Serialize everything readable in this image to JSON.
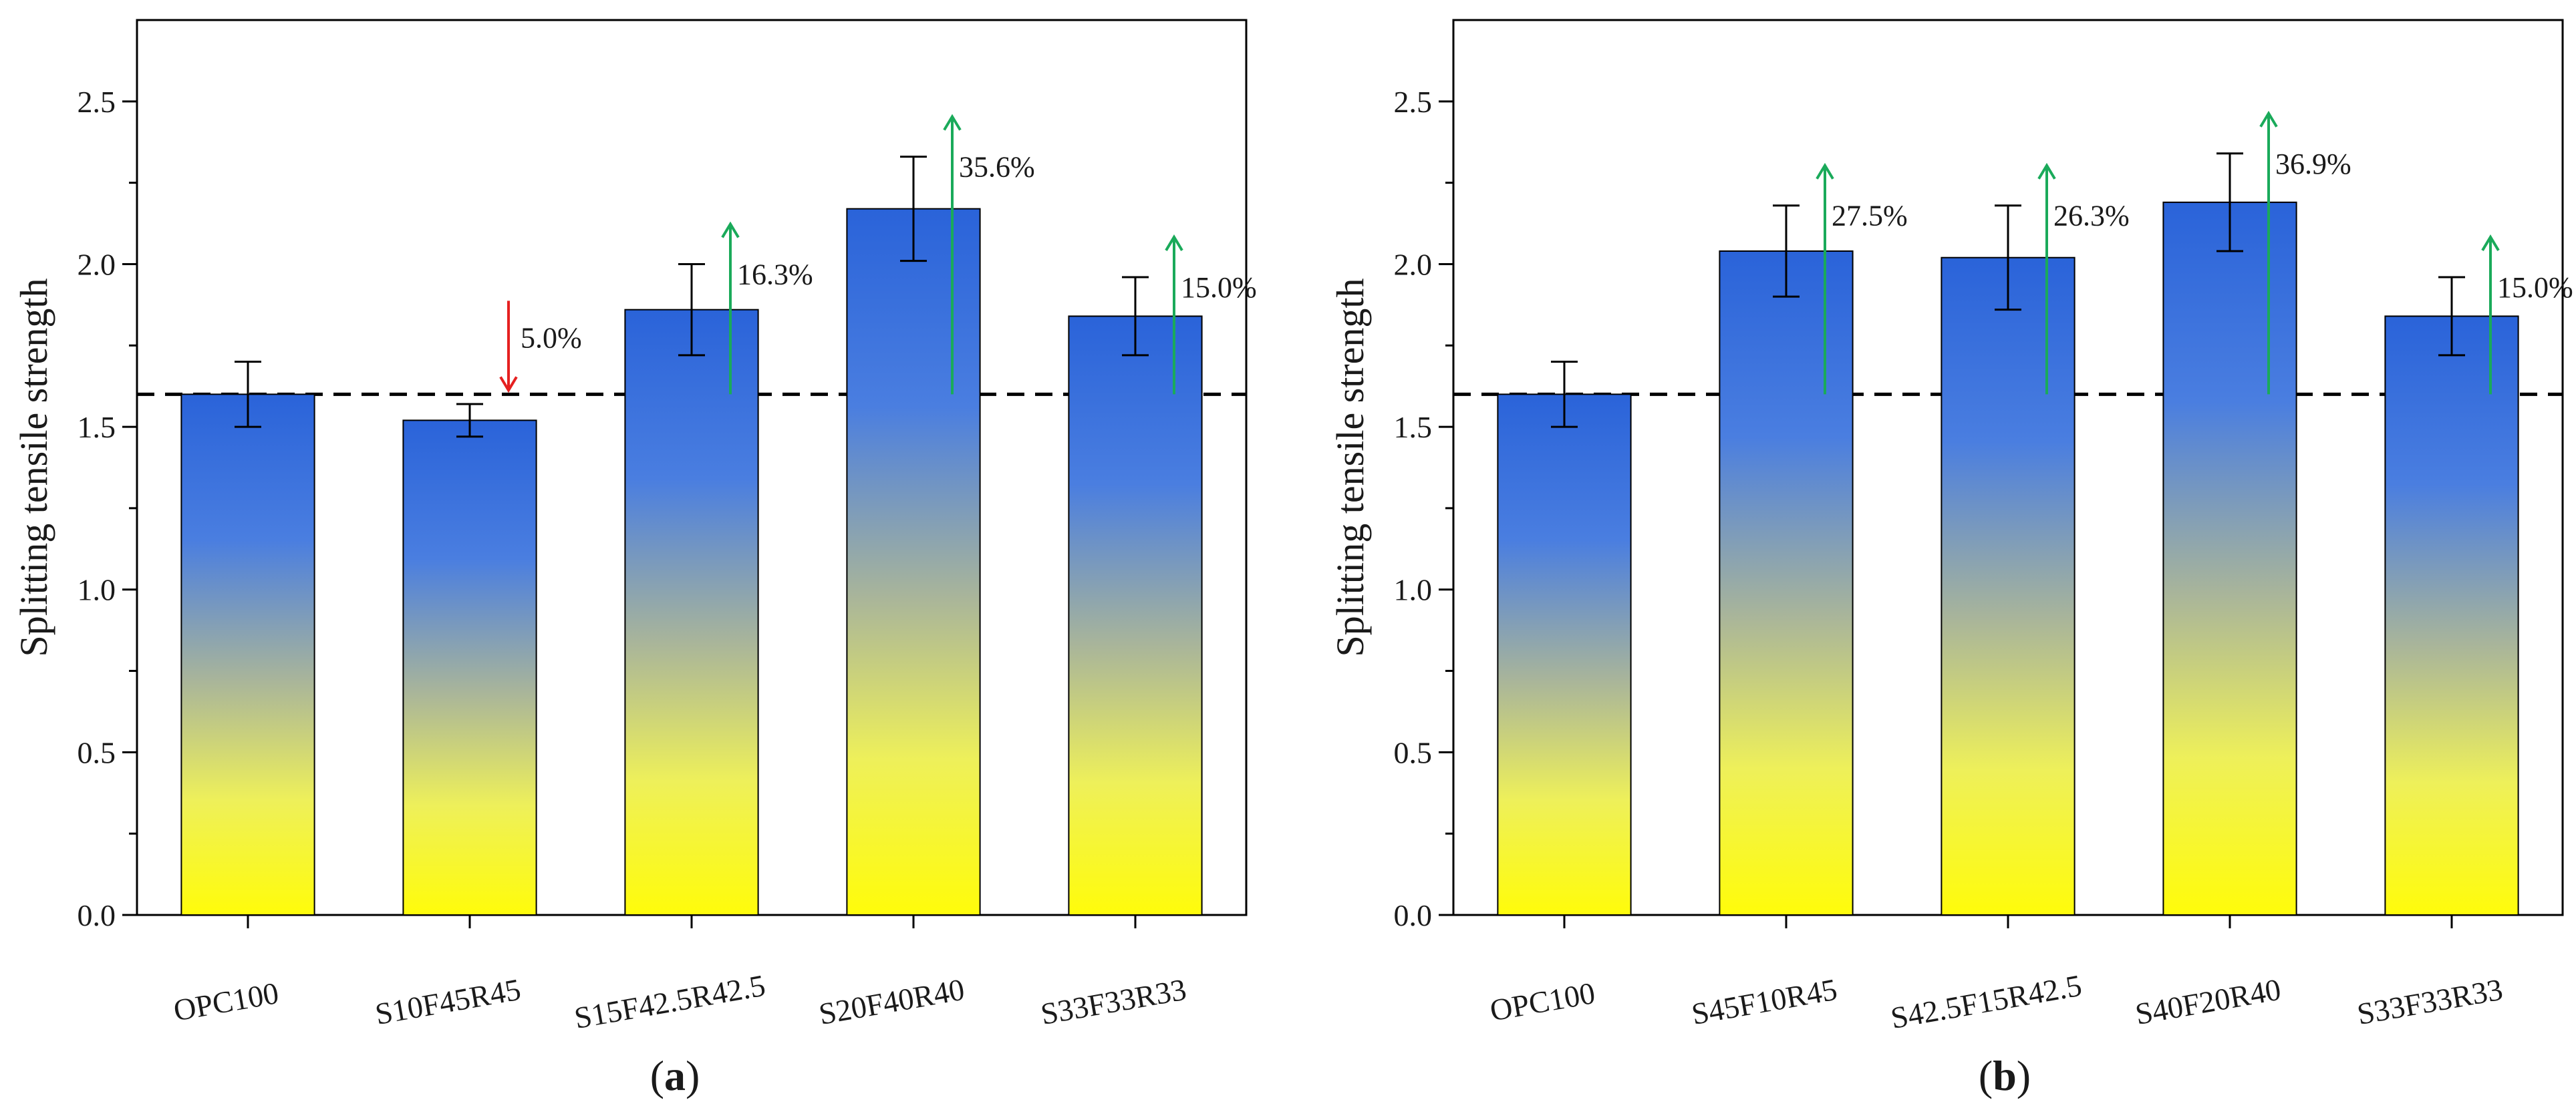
{
  "colors": {
    "bar_top": "#2a63d9",
    "bar_bottom": "#fffc0a",
    "increase_arrow": "#1aaa5a",
    "decrease_arrow": "#e52020",
    "reference_line": "#000000"
  },
  "chart_data": [
    {
      "type": "bar",
      "panel_label": "(a)",
      "panel_letter": "a",
      "title": "",
      "xlabel": "",
      "ylabel": "Splitting tensile strength",
      "ylim": [
        0,
        2.75
      ],
      "yticks": [
        "0.0",
        "0.5",
        "1.0",
        "1.5",
        "2.0",
        "2.5"
      ],
      "reference_line": 1.6,
      "categories": [
        "OPC100",
        "S10F45R45",
        "S15F42.5R42.5",
        "S20F40R40",
        "S33F33R33"
      ],
      "values": [
        1.6,
        1.52,
        1.86,
        2.17,
        1.84
      ],
      "errors": [
        0.1,
        0.05,
        0.14,
        0.16,
        0.12
      ],
      "changes": [
        null,
        {
          "text": "5.0%",
          "direction": "down"
        },
        {
          "text": "16.3%",
          "direction": "up"
        },
        {
          "text": "35.6%",
          "direction": "up"
        },
        {
          "text": "15.0%",
          "direction": "up"
        }
      ]
    },
    {
      "type": "bar",
      "panel_label": "(b)",
      "panel_letter": "b",
      "title": "",
      "xlabel": "",
      "ylabel": "Splitting tensile strength",
      "ylim": [
        0,
        2.75
      ],
      "yticks": [
        "0.0",
        "0.5",
        "1.0",
        "1.5",
        "2.0",
        "2.5"
      ],
      "reference_line": 1.6,
      "categories": [
        "OPC100",
        "S45F10R45",
        "S42.5F15R42.5",
        "S40F20R40",
        "S33F33R33"
      ],
      "values": [
        1.6,
        2.04,
        2.02,
        2.19,
        1.84
      ],
      "errors": [
        0.1,
        0.14,
        0.16,
        0.15,
        0.12
      ],
      "changes": [
        null,
        {
          "text": "27.5%",
          "direction": "up"
        },
        {
          "text": "26.3%",
          "direction": "up"
        },
        {
          "text": "36.9%",
          "direction": "up"
        },
        {
          "text": "15.0%",
          "direction": "up"
        }
      ]
    }
  ]
}
